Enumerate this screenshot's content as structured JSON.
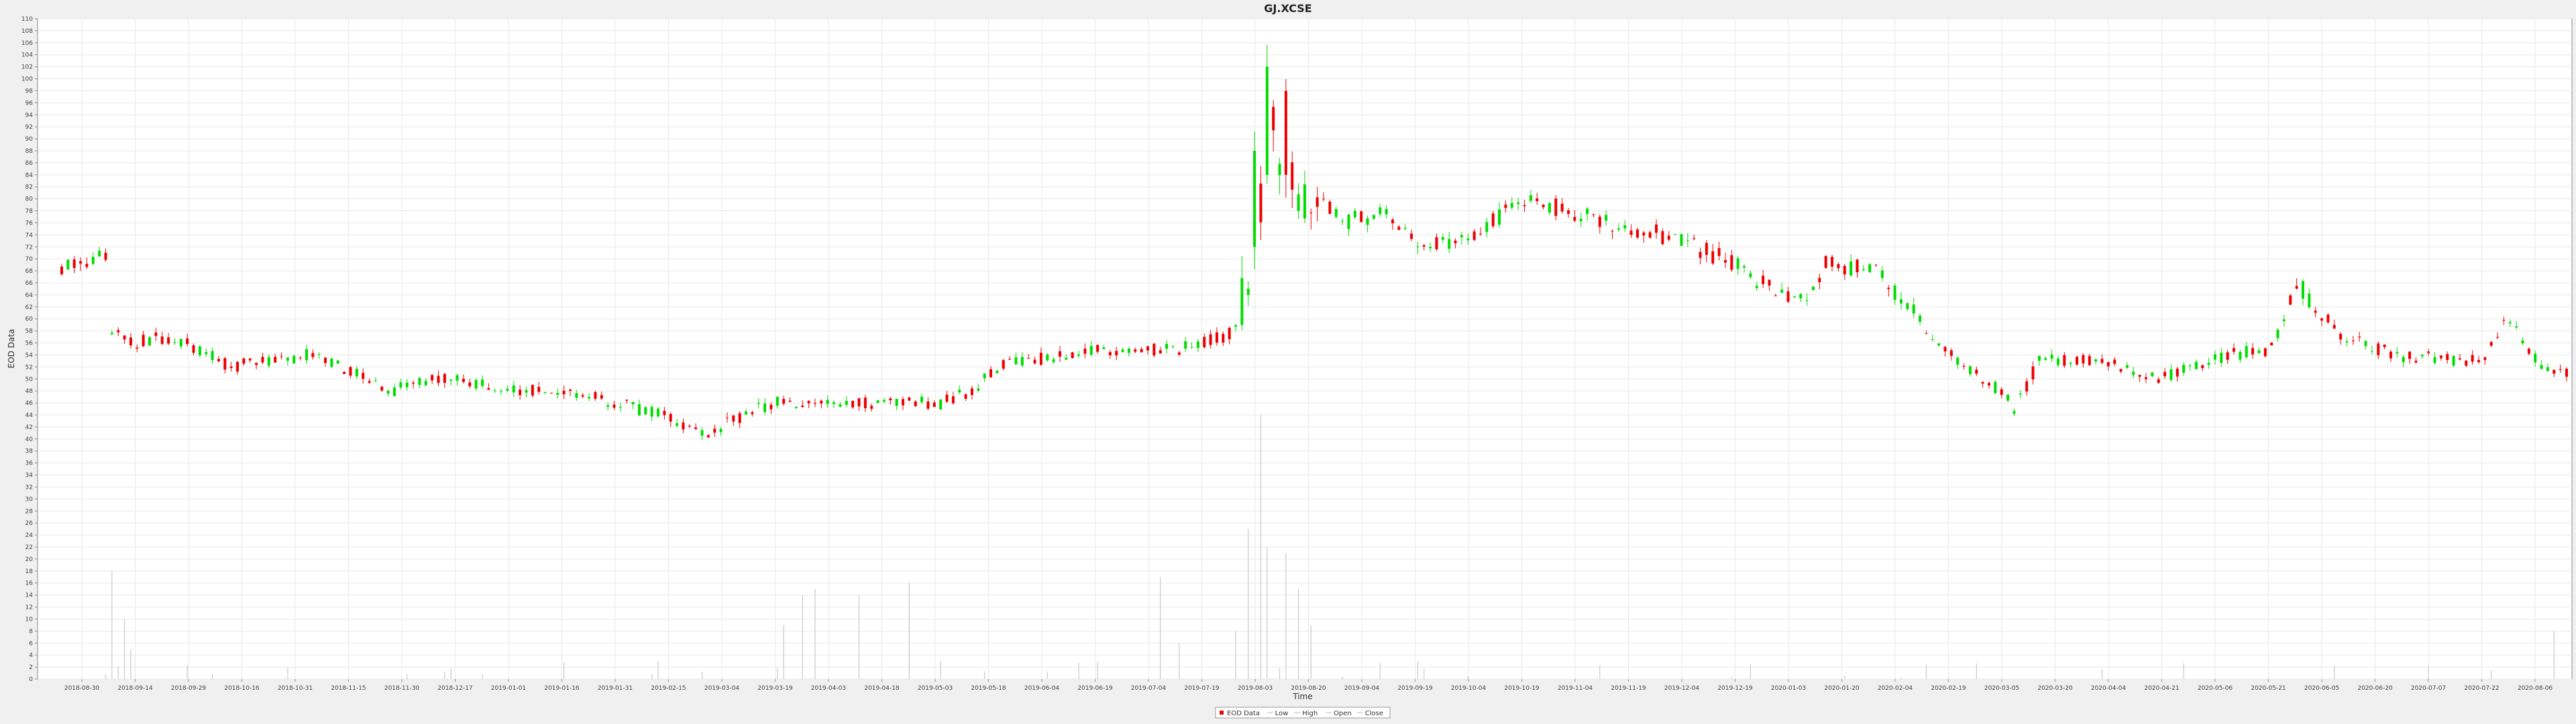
{
  "chart_data": {
    "type": "candlestick",
    "title": "GJ.XCSE",
    "xlabel": "Time",
    "ylabel": "EOD Data",
    "ylim": [
      0,
      110
    ],
    "y_tick_step": 2,
    "x_ticks": [
      "2018-08-30",
      "2018-09-14",
      "2018-09-29",
      "2018-10-16",
      "2018-10-31",
      "2018-11-15",
      "2018-11-30",
      "2018-12-17",
      "2019-01-01",
      "2019-01-16",
      "2019-01-31",
      "2019-02-15",
      "2019-03-04",
      "2019-03-19",
      "2019-04-03",
      "2019-04-18",
      "2019-05-03",
      "2019-05-18",
      "2019-06-04",
      "2019-06-19",
      "2019-07-04",
      "2019-07-19",
      "2019-08-03",
      "2019-08-20",
      "2019-09-04",
      "2019-09-19",
      "2019-10-04",
      "2019-10-19",
      "2019-11-04",
      "2019-11-19",
      "2019-12-04",
      "2019-12-19",
      "2020-01-03",
      "2020-01-20",
      "2020-02-04",
      "2020-02-19",
      "2020-03-05",
      "2020-03-20",
      "2020-04-04",
      "2020-04-21",
      "2020-05-06",
      "2020-05-21",
      "2020-06-05",
      "2020-06-20",
      "2020-07-07",
      "2020-07-22",
      "2020-08-06"
    ],
    "legend": {
      "placement": "bottom-center",
      "entries": [
        "EOD Data",
        "Low",
        "High",
        "Open",
        "Close"
      ]
    },
    "grid": true,
    "colors": {
      "up": "#00dd00",
      "down": "#ee0000",
      "volume": "#c8c8c8",
      "grid": "#e8e8e8"
    },
    "anchors": [
      {
        "t": 0,
        "p": 69
      },
      {
        "t": 6,
        "p": 70
      },
      {
        "t": 7,
        "p": 70
      },
      {
        "t": 8,
        "p": 58
      },
      {
        "t": 12,
        "p": 56
      },
      {
        "t": 15,
        "p": 57
      },
      {
        "t": 20,
        "p": 56
      },
      {
        "t": 27,
        "p": 52
      },
      {
        "t": 33,
        "p": 53
      },
      {
        "t": 40,
        "p": 54
      },
      {
        "t": 47,
        "p": 51
      },
      {
        "t": 52,
        "p": 48
      },
      {
        "t": 60,
        "p": 50
      },
      {
        "t": 67,
        "p": 49
      },
      {
        "t": 75,
        "p": 48
      },
      {
        "t": 85,
        "p": 47
      },
      {
        "t": 95,
        "p": 44
      },
      {
        "t": 103,
        "p": 41
      },
      {
        "t": 107,
        "p": 43
      },
      {
        "t": 113,
        "p": 46
      },
      {
        "t": 125,
        "p": 46
      },
      {
        "t": 140,
        "p": 46
      },
      {
        "t": 145,
        "p": 48
      },
      {
        "t": 149,
        "p": 52
      },
      {
        "t": 160,
        "p": 54
      },
      {
        "t": 168,
        "p": 55
      },
      {
        "t": 178,
        "p": 55
      },
      {
        "t": 185,
        "p": 57
      },
      {
        "t": 187,
        "p": 58
      },
      {
        "t": 189,
        "p": 66
      },
      {
        "t": 191,
        "p": 80
      },
      {
        "t": 192,
        "p": 98
      },
      {
        "t": 194,
        "p": 86
      },
      {
        "t": 197,
        "p": 82
      },
      {
        "t": 205,
        "p": 76
      },
      {
        "t": 210,
        "p": 78
      },
      {
        "t": 215,
        "p": 73
      },
      {
        "t": 225,
        "p": 73
      },
      {
        "t": 230,
        "p": 78
      },
      {
        "t": 233,
        "p": 80
      },
      {
        "t": 240,
        "p": 78
      },
      {
        "t": 245,
        "p": 76
      },
      {
        "t": 255,
        "p": 74
      },
      {
        "t": 265,
        "p": 70
      },
      {
        "t": 272,
        "p": 65
      },
      {
        "t": 277,
        "p": 63
      },
      {
        "t": 281,
        "p": 69
      },
      {
        "t": 289,
        "p": 68
      },
      {
        "t": 295,
        "p": 61
      },
      {
        "t": 300,
        "p": 55
      },
      {
        "t": 303,
        "p": 52
      },
      {
        "t": 309,
        "p": 48
      },
      {
        "t": 311,
        "p": 45
      },
      {
        "t": 315,
        "p": 53
      },
      {
        "t": 325,
        "p": 53
      },
      {
        "t": 334,
        "p": 50
      },
      {
        "t": 345,
        "p": 54
      },
      {
        "t": 352,
        "p": 55
      },
      {
        "t": 356,
        "p": 66
      },
      {
        "t": 360,
        "p": 61
      },
      {
        "t": 363,
        "p": 57
      },
      {
        "t": 372,
        "p": 54
      },
      {
        "t": 382,
        "p": 53
      },
      {
        "t": 386,
        "p": 53
      },
      {
        "t": 388,
        "p": 58
      },
      {
        "t": 390,
        "p": 60
      },
      {
        "t": 395,
        "p": 52
      },
      {
        "t": 397,
        "p": 51
      }
    ],
    "volume_spikes": [
      {
        "t": 8,
        "v": 18
      },
      {
        "t": 10,
        "v": 10
      },
      {
        "t": 11,
        "v": 5
      },
      {
        "t": 115,
        "v": 9
      },
      {
        "t": 118,
        "v": 14
      },
      {
        "t": 120,
        "v": 15
      },
      {
        "t": 127,
        "v": 14
      },
      {
        "t": 135,
        "v": 16
      },
      {
        "t": 175,
        "v": 17
      },
      {
        "t": 178,
        "v": 6
      },
      {
        "t": 187,
        "v": 8
      },
      {
        "t": 189,
        "v": 25
      },
      {
        "t": 191,
        "v": 44
      },
      {
        "t": 192,
        "v": 22
      },
      {
        "t": 195,
        "v": 21
      },
      {
        "t": 197,
        "v": 15
      },
      {
        "t": 199,
        "v": 9
      },
      {
        "t": 397,
        "v": 8
      }
    ]
  }
}
